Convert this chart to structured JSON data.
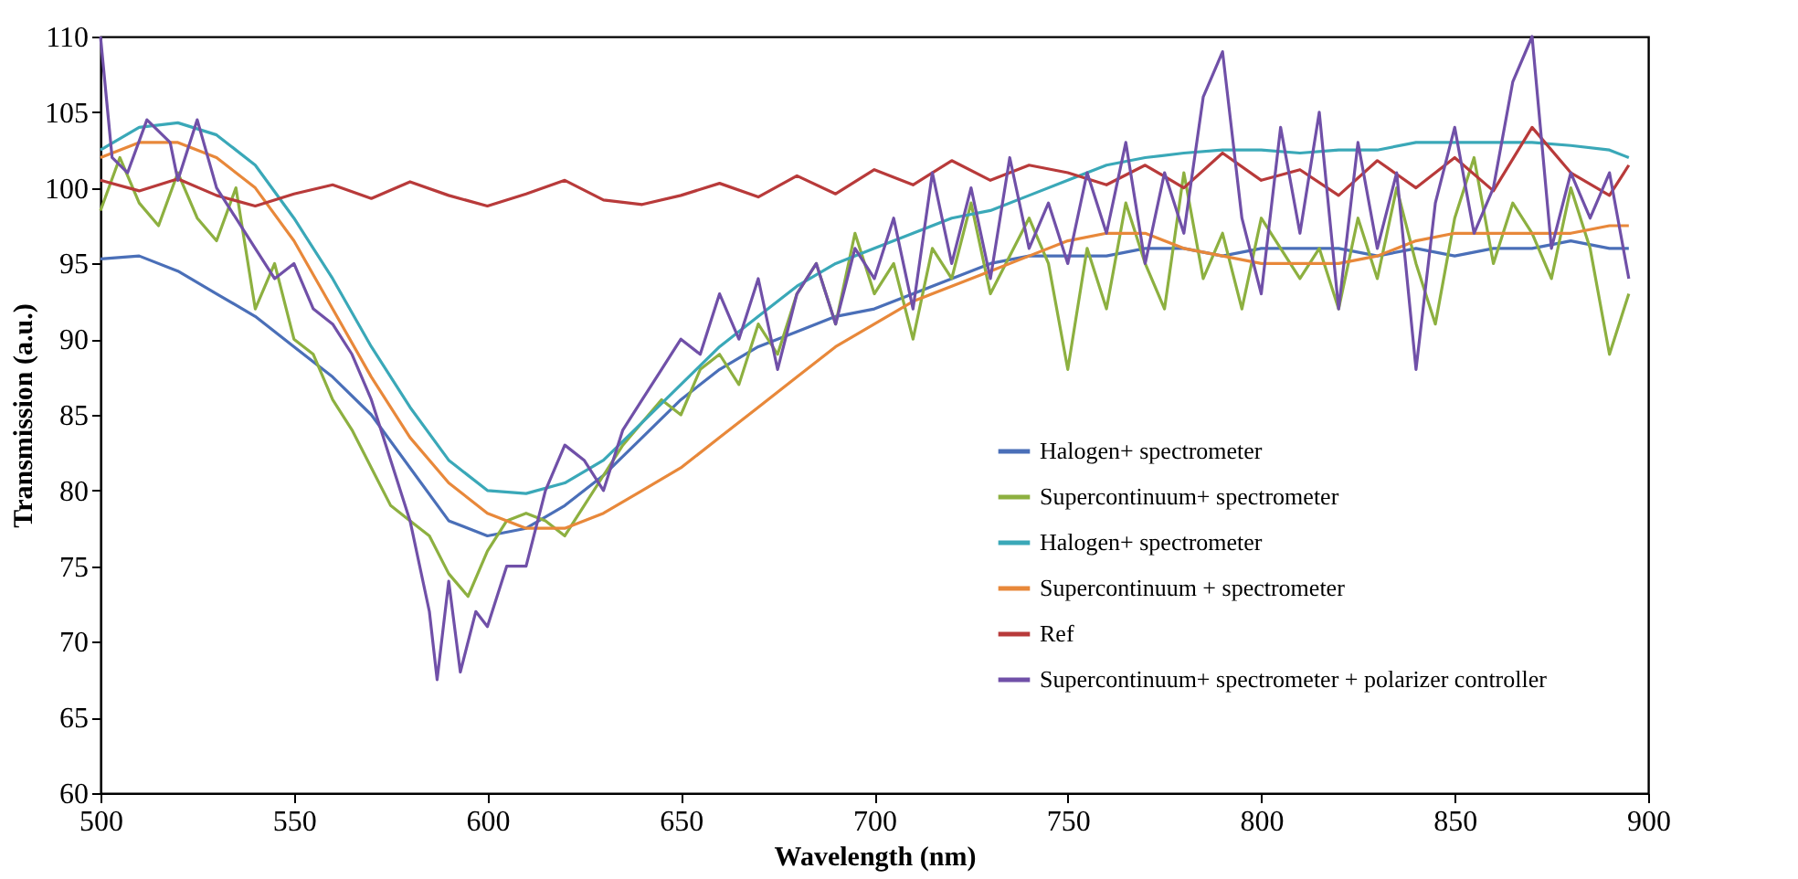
{
  "chart_data": {
    "type": "line",
    "xlabel": "Wavelength (nm)",
    "ylabel": "Transmission (a.u.)",
    "xlim": [
      500,
      900
    ],
    "xticks": [
      500,
      550,
      600,
      650,
      700,
      750,
      800,
      850,
      900
    ],
    "ylim": [
      60,
      110
    ],
    "yticks": [
      60,
      65,
      70,
      75,
      80,
      85,
      90,
      95,
      100,
      105,
      110
    ],
    "grid": false,
    "legend": "bottom right",
    "marker": "none",
    "line_style": "solid",
    "series": [
      {
        "name": "Halogen+ spectrometer",
        "color": "#4a6fb8",
        "x": [
          500,
          510,
          520,
          530,
          540,
          550,
          560,
          570,
          580,
          590,
          600,
          610,
          620,
          630,
          640,
          650,
          660,
          670,
          680,
          690,
          700,
          710,
          720,
          730,
          740,
          750,
          760,
          770,
          780,
          790,
          800,
          810,
          820,
          830,
          840,
          850,
          860,
          870,
          880,
          890,
          895
        ],
        "values": [
          95.3,
          95.5,
          94.5,
          93,
          91.5,
          89.5,
          87.5,
          85,
          81.5,
          78,
          77,
          77.5,
          79,
          81,
          83.5,
          86,
          88,
          89.5,
          90.5,
          91.5,
          92,
          93,
          94,
          95,
          95.5,
          95.5,
          95.5,
          96,
          96,
          95.5,
          96,
          96,
          96,
          95.5,
          96,
          95.5,
          96,
          96,
          96.5,
          96,
          96
        ]
      },
      {
        "name": "Supercontinuum+ spectrometer",
        "color": "#8db040",
        "x": [
          500,
          505,
          510,
          515,
          520,
          525,
          530,
          535,
          540,
          545,
          550,
          555,
          560,
          565,
          570,
          575,
          580,
          585,
          590,
          595,
          600,
          605,
          610,
          615,
          620,
          625,
          630,
          635,
          640,
          645,
          650,
          655,
          660,
          665,
          670,
          675,
          680,
          685,
          690,
          695,
          700,
          705,
          710,
          715,
          720,
          725,
          730,
          740,
          745,
          750,
          755,
          760,
          765,
          770,
          775,
          780,
          785,
          790,
          795,
          800,
          810,
          815,
          820,
          825,
          830,
          835,
          840,
          845,
          850,
          855,
          860,
          865,
          870,
          875,
          880,
          885,
          890,
          895
        ],
        "values": [
          98.5,
          102,
          99,
          97.5,
          101,
          98,
          96.5,
          100,
          92,
          95,
          90,
          89,
          86,
          84,
          81.5,
          79,
          78,
          77,
          74.5,
          73,
          76,
          78,
          78.5,
          78,
          77,
          79,
          81,
          83,
          84.5,
          86,
          85,
          88,
          89,
          87,
          91,
          89,
          93,
          95,
          91,
          97,
          93,
          95,
          90,
          96,
          94,
          99,
          93,
          98,
          95,
          88,
          96,
          92,
          99,
          95,
          92,
          101,
          94,
          97,
          92,
          98,
          94,
          96,
          92,
          98,
          94,
          100,
          95,
          91,
          98,
          102,
          95,
          99,
          97,
          94,
          100,
          96,
          89,
          93
        ]
      },
      {
        "name": "Halogen+ spectrometer",
        "color": "#3aa8b8",
        "x": [
          500,
          510,
          520,
          530,
          540,
          550,
          560,
          570,
          580,
          590,
          600,
          610,
          620,
          630,
          640,
          650,
          660,
          670,
          680,
          690,
          700,
          710,
          720,
          730,
          740,
          750,
          760,
          770,
          780,
          790,
          800,
          810,
          820,
          830,
          840,
          850,
          860,
          870,
          880,
          890,
          895
        ],
        "values": [
          102.5,
          104,
          104.3,
          103.5,
          101.5,
          98,
          94,
          89.5,
          85.5,
          82,
          80,
          79.8,
          80.5,
          82,
          84.5,
          87,
          89.5,
          91.5,
          93.5,
          95,
          96,
          97,
          98,
          98.5,
          99.5,
          100.5,
          101.5,
          102,
          102.3,
          102.5,
          102.5,
          102.3,
          102.5,
          102.5,
          103,
          103,
          103,
          103,
          102.8,
          102.5,
          102
        ]
      },
      {
        "name": "Supercontinuum + spectrometer",
        "color": "#e8883a",
        "x": [
          500,
          510,
          520,
          530,
          540,
          550,
          560,
          570,
          580,
          590,
          600,
          610,
          620,
          630,
          640,
          650,
          660,
          670,
          680,
          690,
          700,
          710,
          720,
          730,
          740,
          750,
          760,
          770,
          780,
          790,
          800,
          810,
          820,
          830,
          840,
          850,
          860,
          870,
          880,
          890,
          895
        ],
        "values": [
          102,
          103,
          103,
          102,
          100,
          96.5,
          92,
          87.5,
          83.5,
          80.5,
          78.5,
          77.5,
          77.5,
          78.5,
          80,
          81.5,
          83.5,
          85.5,
          87.5,
          89.5,
          91,
          92.5,
          93.5,
          94.5,
          95.5,
          96.5,
          97,
          97,
          96,
          95.5,
          95,
          95,
          95,
          95.5,
          96.5,
          97,
          97,
          97,
          97,
          97.5,
          97.5
        ]
      },
      {
        "name": "Ref",
        "color": "#b83a3a",
        "x": [
          500,
          510,
          520,
          530,
          540,
          550,
          560,
          570,
          580,
          590,
          600,
          610,
          620,
          630,
          640,
          650,
          660,
          670,
          680,
          690,
          700,
          710,
          720,
          730,
          740,
          750,
          760,
          770,
          780,
          790,
          800,
          810,
          820,
          830,
          840,
          850,
          860,
          870,
          880,
          890,
          895
        ],
        "values": [
          100.5,
          99.8,
          100.6,
          99.5,
          98.8,
          99.6,
          100.2,
          99.3,
          100.4,
          99.5,
          98.8,
          99.6,
          100.5,
          99.2,
          98.9,
          99.5,
          100.3,
          99.4,
          100.8,
          99.6,
          101.2,
          100.2,
          101.8,
          100.5,
          101.5,
          101,
          100.2,
          101.5,
          100,
          102.3,
          100.5,
          101.2,
          99.5,
          101.8,
          100,
          102,
          99.8,
          104,
          101,
          99.5,
          101.5
        ]
      },
      {
        "name": "Supercontinuum+ spectrometer + polarizer controller",
        "color": "#7050a8",
        "x": [
          500,
          503,
          507,
          512,
          518,
          520,
          525,
          530,
          535,
          540,
          545,
          550,
          555,
          560,
          565,
          570,
          575,
          580,
          585,
          587,
          590,
          593,
          597,
          600,
          605,
          610,
          615,
          620,
          625,
          630,
          635,
          640,
          645,
          650,
          655,
          660,
          665,
          670,
          675,
          680,
          685,
          690,
          695,
          700,
          705,
          710,
          715,
          720,
          725,
          730,
          735,
          740,
          745,
          750,
          755,
          760,
          765,
          770,
          775,
          780,
          785,
          790,
          795,
          800,
          805,
          810,
          815,
          820,
          825,
          830,
          835,
          840,
          845,
          850,
          855,
          860,
          865,
          870,
          875,
          880,
          885,
          890,
          895
        ],
        "values": [
          110,
          102,
          101,
          104.5,
          103,
          100.5,
          104.5,
          100,
          98,
          96,
          94,
          95,
          92,
          91,
          89,
          86,
          82,
          78,
          72,
          67.5,
          74,
          68,
          72,
          71,
          75,
          75,
          80,
          83,
          82,
          80,
          84,
          86,
          88,
          90,
          89,
          93,
          90,
          94,
          88,
          93,
          95,
          91,
          96,
          94,
          98,
          92,
          101,
          95,
          100,
          94,
          102,
          96,
          99,
          95,
          101,
          97,
          103,
          95,
          101,
          97,
          106,
          109,
          98,
          93,
          104,
          97,
          105,
          92,
          103,
          96,
          101,
          88,
          99,
          104,
          97,
          100,
          107,
          110,
          96,
          101,
          98,
          101,
          94
        ]
      }
    ]
  }
}
